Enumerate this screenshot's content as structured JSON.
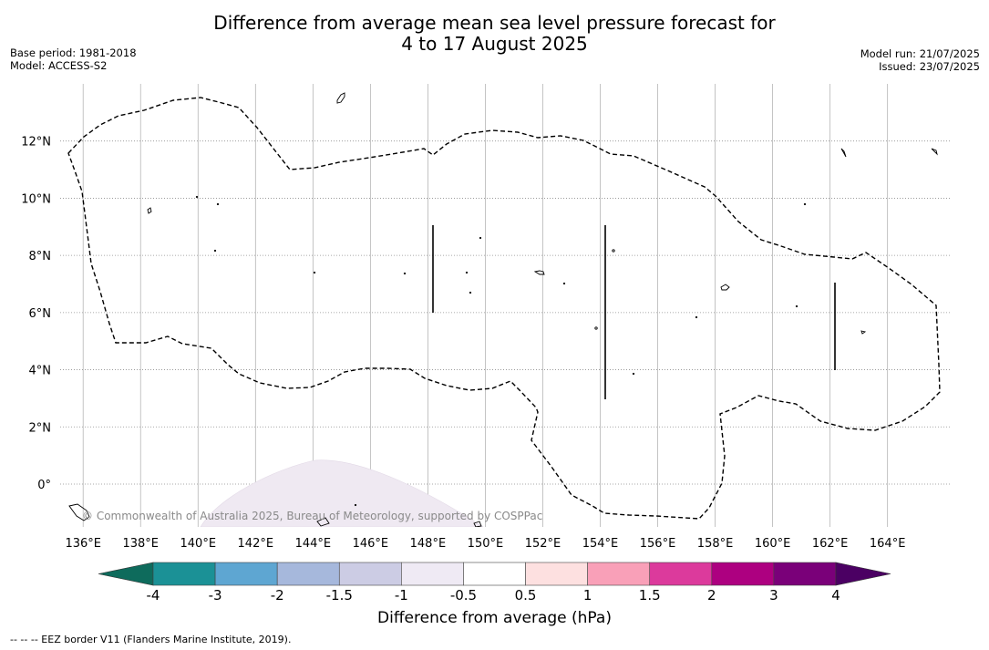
{
  "title_line1": "Difference from average mean sea level pressure forecast for",
  "title_line2": "4 to 17 August 2025",
  "base_period": "Base period: 1981-2018",
  "model": "Model: ACCESS-S2",
  "model_run": "Model run: 21/07/2025",
  "issued": "Issued: 23/07/2025",
  "copyright": "© Commonwealth of Australia 2025, Bureau of Meteorology, supported by COSPPac",
  "footnote": "-- -- -- EEZ border V11 (Flanders Marine Institute, 2019).",
  "map": {
    "lon_labels": [
      "136°E",
      "138°E",
      "140°E",
      "142°E",
      "144°E",
      "146°E",
      "148°E",
      "150°E",
      "152°E",
      "154°E",
      "156°E",
      "158°E",
      "160°E",
      "162°E",
      "164°E"
    ],
    "lat_labels": [
      "12°N",
      "10°N",
      "8°N",
      "6°N",
      "4°N",
      "2°N",
      "0°"
    ],
    "lon_range": [
      135.2,
      166.2
    ],
    "lat_range": [
      -1.5,
      14.0
    ]
  },
  "colorbar": {
    "title": "Difference from average (hPa)",
    "tick_labels": [
      "-4",
      "-3",
      "-2",
      "-1.5",
      "-1",
      "-0.5",
      "0.5",
      "1",
      "1.5",
      "2",
      "3",
      "4"
    ],
    "colors": [
      "#1b9196",
      "#5ea6d2",
      "#a6b8dc",
      "#cccce4",
      "#efeaf4",
      "#ffffff",
      "#fde0e0",
      "#f9a0b8",
      "#dc3a9c",
      "#ad0080",
      "#7a0079"
    ],
    "under_color": "#0e6b5c",
    "over_color": "#4b0063"
  }
}
